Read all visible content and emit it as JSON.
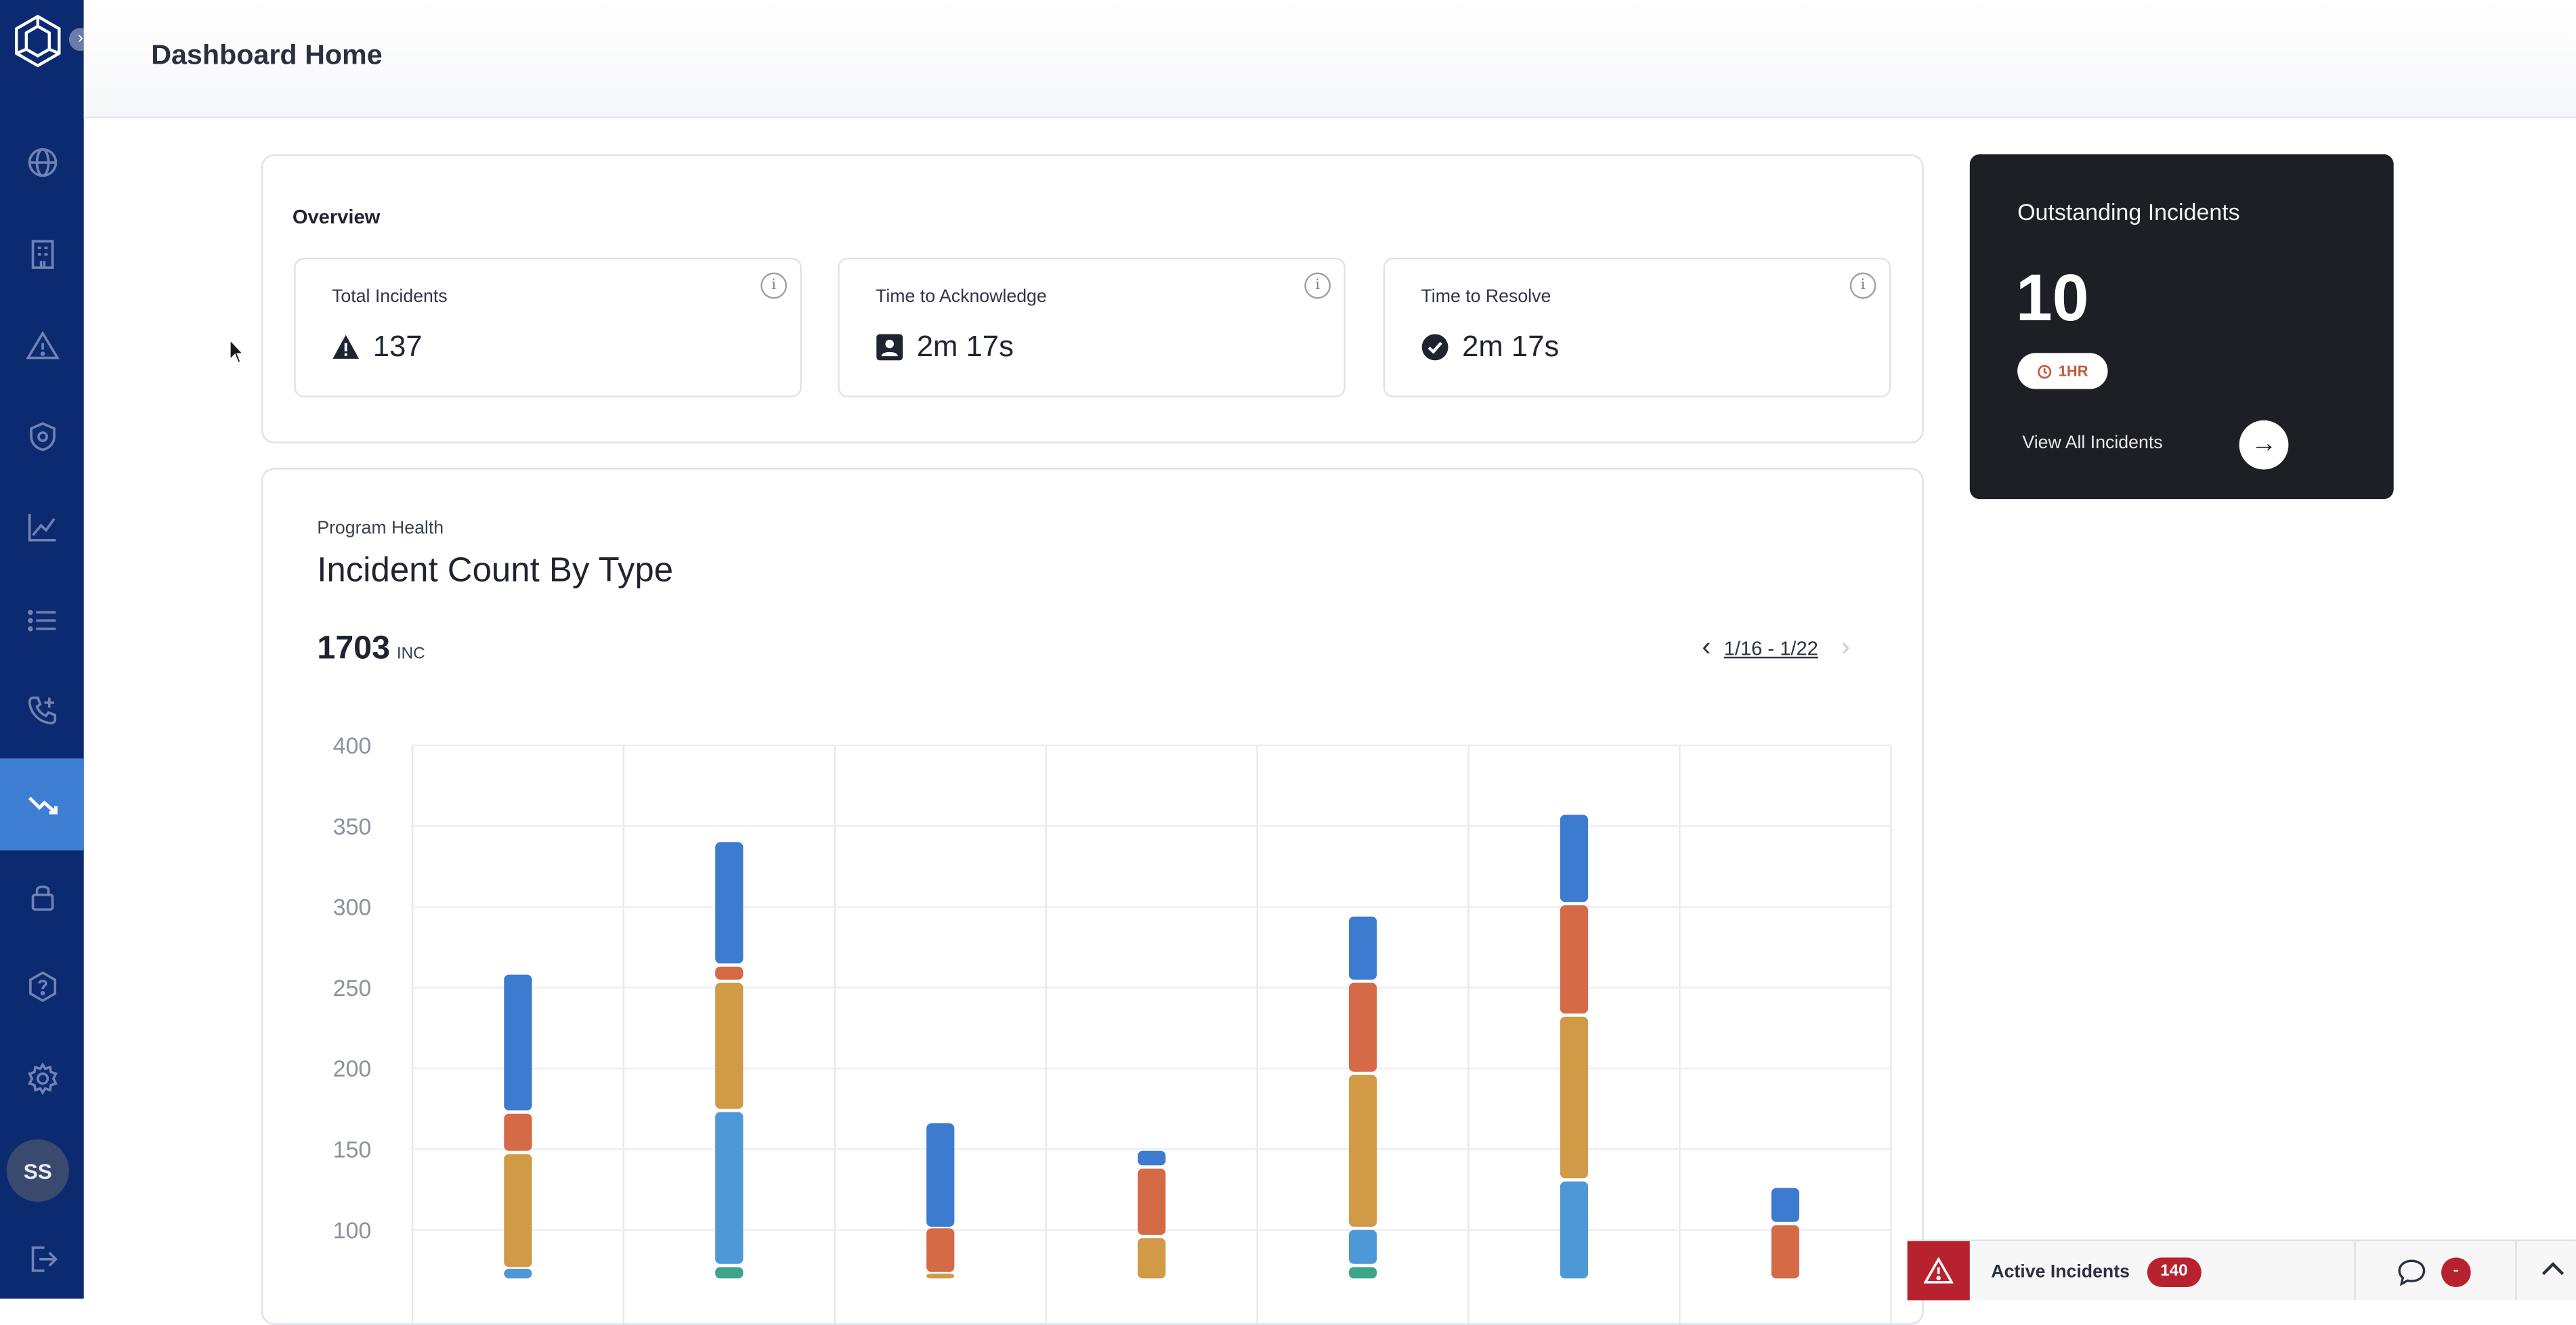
{
  "header": {
    "title": "Dashboard Home"
  },
  "sidebar": {
    "items": [
      {
        "icon": "globe-icon"
      },
      {
        "icon": "building-icon"
      },
      {
        "icon": "warning-icon"
      },
      {
        "icon": "shield-icon"
      },
      {
        "icon": "line-chart-icon"
      },
      {
        "icon": "list-icon"
      },
      {
        "icon": "phone-plus-icon"
      },
      {
        "icon": "trend-down-icon",
        "active": true
      },
      {
        "icon": "lock-icon"
      },
      {
        "icon": "help-hexagon-icon"
      },
      {
        "icon": "gear-icon"
      },
      {
        "icon": "logout-icon"
      }
    ],
    "avatar": "SS"
  },
  "overview": {
    "title": "Overview",
    "stats": [
      {
        "label": "Total Incidents",
        "value": "137",
        "icon": "warning-icon"
      },
      {
        "label": "Time to Acknowledge",
        "value": "2m 17s",
        "icon": "user-badge-icon"
      },
      {
        "label": "Time to Resolve",
        "value": "2m 17s",
        "icon": "check-circle-icon"
      }
    ],
    "info_glyph": "i"
  },
  "outstanding": {
    "title": "Outstanding Incidents",
    "count": "10",
    "badge": "1HR",
    "link": "View All Incidents",
    "arrow": "→"
  },
  "chart_section": {
    "label": "Program Health",
    "title": "Incident Count By Type",
    "total": "1703",
    "total_unit": "INC",
    "range": "1/16 - 1/22",
    "prev": "‹",
    "next": "›"
  },
  "colors": {
    "sidebar": "#0c2a70",
    "active": "#3f7fd3",
    "alert": "#b8222e"
  },
  "chart_data": {
    "type": "bar",
    "stacked": true,
    "ylim": [
      70,
      400
    ],
    "yticks": [
      100,
      150,
      200,
      250,
      300,
      350,
      400
    ],
    "grid": true,
    "segments": [
      [
        {
          "from": 70,
          "to": 76,
          "color": "#4f98d8"
        },
        {
          "from": 77,
          "to": 147,
          "color": "#d19a47"
        },
        {
          "from": 149,
          "to": 172,
          "color": "#d56a47"
        },
        {
          "from": 174,
          "to": 258,
          "color": "#3d7bd0"
        }
      ],
      [
        {
          "from": 70,
          "to": 77,
          "color": "#3ea58a"
        },
        {
          "from": 79,
          "to": 173,
          "color": "#4f98d8"
        },
        {
          "from": 175,
          "to": 253,
          "color": "#d19a47"
        },
        {
          "from": 255,
          "to": 263,
          "color": "#d56a47"
        },
        {
          "from": 265,
          "to": 340,
          "color": "#3d7bd0"
        }
      ],
      [
        {
          "from": 70,
          "to": 73,
          "color": "#d19a47"
        },
        {
          "from": 74,
          "to": 101,
          "color": "#d56a47"
        },
        {
          "from": 102,
          "to": 166,
          "color": "#3d7bd0"
        }
      ],
      [
        {
          "from": 70,
          "to": 95,
          "color": "#d19a47"
        },
        {
          "from": 97,
          "to": 138,
          "color": "#d56a47"
        },
        {
          "from": 140,
          "to": 149,
          "color": "#3d7bd0"
        }
      ],
      [
        {
          "from": 70,
          "to": 77,
          "color": "#3ea58a"
        },
        {
          "from": 79,
          "to": 100,
          "color": "#4f98d8"
        },
        {
          "from": 102,
          "to": 196,
          "color": "#d19a47"
        },
        {
          "from": 198,
          "to": 253,
          "color": "#d56a47"
        },
        {
          "from": 255,
          "to": 294,
          "color": "#3d7bd0"
        }
      ],
      [
        {
          "from": 70,
          "to": 130,
          "color": "#4f98d8"
        },
        {
          "from": 132,
          "to": 232,
          "color": "#d19a47"
        },
        {
          "from": 234,
          "to": 301,
          "color": "#d56a47"
        },
        {
          "from": 303,
          "to": 357,
          "color": "#3d7bd0"
        }
      ],
      [
        {
          "from": 70,
          "to": 103,
          "color": "#d56a47"
        },
        {
          "from": 105,
          "to": 126,
          "color": "#3d7bd0"
        }
      ]
    ]
  },
  "bottom_bar": {
    "label": "Active Incidents",
    "count": "140",
    "chat_badge": "-"
  }
}
